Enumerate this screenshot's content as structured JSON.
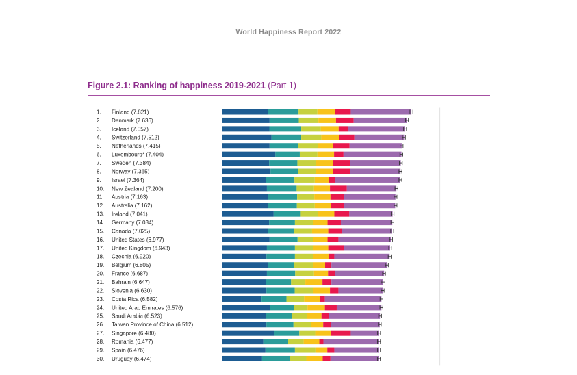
{
  "header": {
    "report_title": "World Happiness Report 2022",
    "figure_title_bold": "Figure 2.1: Ranking of happiness 2019-2021",
    "figure_title_rest": " (Part 1)"
  },
  "colors": {
    "title": "#8e2d8c",
    "segments": [
      "#1d5c92",
      "#2a9c9a",
      "#c6d13f",
      "#f8c31b",
      "#e8184d",
      "#9c6aae"
    ],
    "error_bar": "#333333",
    "gridline": "#d9d9d9"
  },
  "chart_data": {
    "type": "bar",
    "orientation": "horizontal",
    "stacked": true,
    "xlim": [
      0,
      8.0
    ],
    "title": "Ranking of happiness 2019-2021 (Part 1)",
    "categories": [
      "1.|Finland (7.821)",
      "2.|Denmark (7.636)",
      "3.|Iceland (7.557)",
      "4.|Switzerland (7.512)",
      "5.|Netherlands (7.415)",
      "6.|Luxembourg* (7.404)",
      "7.|Sweden (7.384)",
      "8.|Norway (7.365)",
      "9.|Israel (7.364)",
      "10.|New Zealand (7.200)",
      "11.|Austria (7.163)",
      "12.|Australia (7.162)",
      "13.|Ireland (7.041)",
      "14.|Germany (7.034)",
      "15.|Canada (7.025)",
      "16.|United States (6.977)",
      "17.|United Kingdom (6.943)",
      "18.|Czechia (6.920)",
      "19.|Belgium (6.805)",
      "20.|France (6.687)",
      "21.|Bahrain (6.647)",
      "22.|Slovenia (6.630)",
      "23.|Costa Rica (6.582)",
      "24.|United Arab Emirates (6.576)",
      "25.|Saudi Arabia (6.523)",
      "26.|Taiwan Province of China (6.512)",
      "27.|Singapore (6.480)",
      "28.|Romania (6.477)",
      "29.|Spain (6.476)",
      "30.|Uruguay (6.474)"
    ],
    "totals": [
      7.821,
      7.636,
      7.557,
      7.512,
      7.415,
      7.404,
      7.384,
      7.365,
      7.364,
      7.2,
      7.163,
      7.162,
      7.041,
      7.034,
      7.025,
      6.977,
      6.943,
      6.92,
      6.805,
      6.687,
      6.647,
      6.63,
      6.582,
      6.576,
      6.523,
      6.512,
      6.48,
      6.477,
      6.476,
      6.474
    ],
    "series": [
      {
        "values": [
          1.89,
          1.95,
          1.94,
          2.03,
          1.95,
          2.19,
          1.93,
          1.99,
          1.79,
          1.84,
          1.87,
          1.89,
          2.12,
          1.93,
          1.88,
          1.95,
          1.84,
          1.82,
          1.88,
          1.84,
          1.81,
          1.82,
          1.62,
          1.98,
          1.81,
          1.82,
          2.14,
          1.69,
          1.78,
          1.64
        ]
      },
      {
        "values": [
          1.26,
          1.21,
          1.32,
          1.23,
          1.18,
          1.01,
          1.17,
          1.14,
          1.19,
          1.23,
          1.22,
          1.19,
          1.12,
          1.07,
          1.09,
          1.16,
          1.16,
          1.18,
          1.09,
          1.17,
          1.03,
          1.17,
          1.03,
          0.98,
          1.08,
          1.12,
          1.04,
          1.03,
          1.22,
          1.16
        ]
      },
      {
        "values": [
          0.78,
          0.81,
          0.81,
          0.83,
          0.81,
          0.73,
          0.78,
          0.74,
          0.84,
          0.72,
          0.71,
          0.74,
          0.72,
          0.74,
          0.74,
          0.64,
          0.74,
          0.74,
          0.77,
          0.78,
          0.59,
          0.76,
          0.73,
          0.56,
          0.61,
          0.73,
          0.66,
          0.64,
          0.85,
          0.67
        ]
      },
      {
        "values": [
          0.74,
          0.73,
          0.74,
          0.73,
          0.64,
          0.69,
          0.7,
          0.71,
          0.57,
          0.66,
          0.67,
          0.66,
          0.67,
          0.61,
          0.67,
          0.6,
          0.64,
          0.65,
          0.51,
          0.58,
          0.71,
          0.7,
          0.67,
          0.72,
          0.6,
          0.5,
          0.64,
          0.65,
          0.49,
          0.68
        ]
      },
      {
        "values": [
          0.64,
          0.73,
          0.39,
          0.64,
          0.68,
          0.39,
          0.7,
          0.7,
          0.26,
          0.7,
          0.55,
          0.54,
          0.62,
          0.55,
          0.55,
          0.45,
          0.65,
          0.24,
          0.26,
          0.29,
          0.37,
          0.35,
          0.19,
          0.49,
          0.31,
          0.33,
          0.83,
          0.17,
          0.29,
          0.32
        ]
      },
      {
        "values": [
          2.51,
          2.21,
          2.35,
          2.06,
          2.16,
          2.4,
          2.1,
          2.09,
          2.71,
          2.05,
          2.14,
          2.13,
          1.79,
          2.13,
          2.09,
          2.17,
          1.91,
          2.29,
          2.29,
          2.03,
          2.13,
          1.83,
          2.34,
          1.85,
          2.11,
          2.01,
          1.17,
          2.3,
          1.84,
          2.0
        ]
      }
    ],
    "error_margin": [
      0.06,
      0.06,
      0.06,
      0.06,
      0.06,
      0.06,
      0.06,
      0.06,
      0.06,
      0.06,
      0.06,
      0.06,
      0.06,
      0.06,
      0.06,
      0.06,
      0.06,
      0.06,
      0.06,
      0.06,
      0.08,
      0.06,
      0.06,
      0.06,
      0.06,
      0.06,
      0.06,
      0.06,
      0.06,
      0.06
    ]
  }
}
